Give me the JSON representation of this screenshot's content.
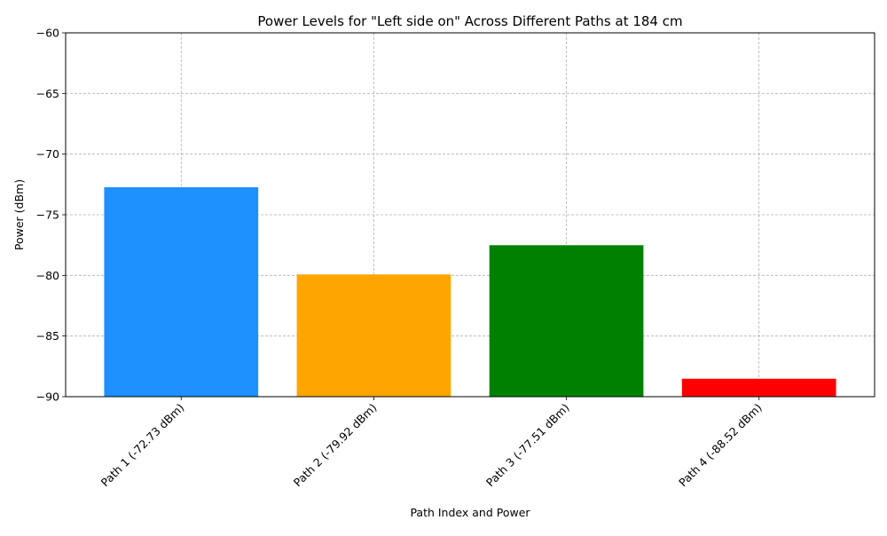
{
  "chart_data": {
    "type": "bar",
    "title": "Power Levels for \"Left side on\" Across Different Paths at 184 cm",
    "xlabel": "Path Index and Power",
    "ylabel": "Power (dBm)",
    "categories": [
      "Path 1 (-72.73 dBm)",
      "Path 2 (-79.92 dBm)",
      "Path 3 (-77.51 dBm)",
      "Path 4 (-88.52 dBm)"
    ],
    "values": [
      -72.73,
      -79.92,
      -77.51,
      -88.52
    ],
    "colors": [
      "#1e90ff",
      "#ffa500",
      "#008000",
      "#ff0000"
    ],
    "ylim": [
      -90,
      -60
    ],
    "yticks": [
      -90,
      -85,
      -80,
      -75,
      -70,
      -65,
      -60
    ],
    "ytick_labels": [
      "−90",
      "−85",
      "−80",
      "−75",
      "−70",
      "−65",
      "−60"
    ],
    "grid": true,
    "legend": "none"
  }
}
